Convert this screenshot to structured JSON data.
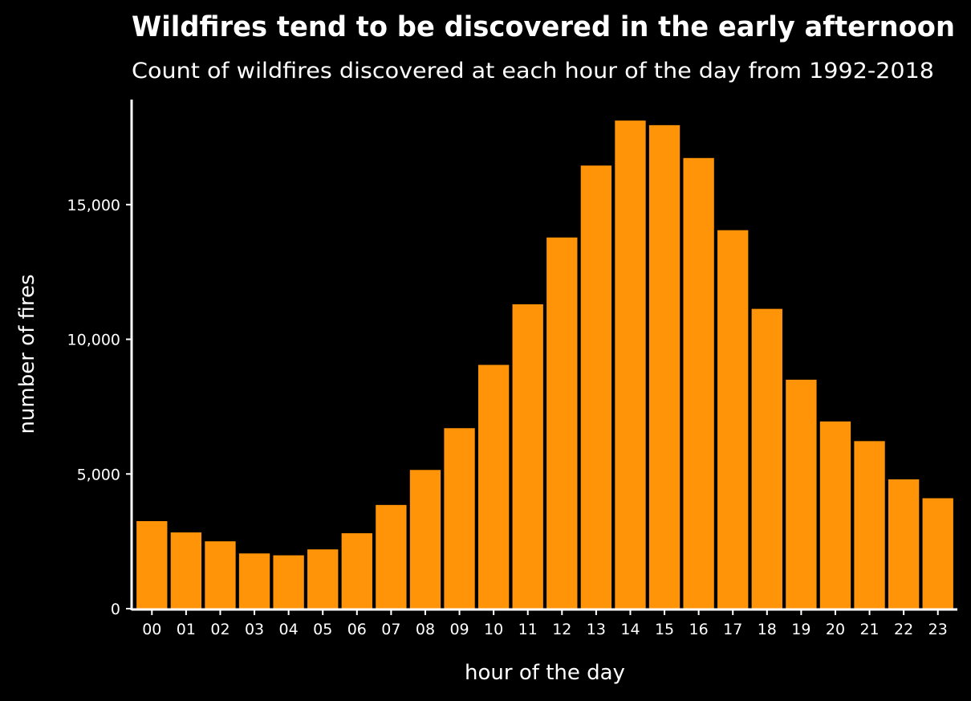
{
  "chart_data": {
    "type": "bar",
    "title": "Wildfires tend to be discovered in the early afternoon",
    "subtitle": "Count of wildfires discovered at each hour of the day from 1992-2018",
    "xlabel": "hour of the day",
    "ylabel": "number of fires",
    "categories": [
      "00",
      "01",
      "02",
      "03",
      "04",
      "05",
      "06",
      "07",
      "08",
      "09",
      "10",
      "11",
      "12",
      "13",
      "14",
      "15",
      "16",
      "17",
      "18",
      "19",
      "20",
      "21",
      "22",
      "23"
    ],
    "values": [
      3250,
      2830,
      2500,
      2050,
      1980,
      2200,
      2800,
      3850,
      5150,
      6700,
      9050,
      11300,
      13780,
      16450,
      18120,
      17950,
      16730,
      14050,
      11130,
      8500,
      6950,
      6220,
      4800,
      4100
    ],
    "ylim": [
      0,
      18900
    ],
    "yticks": [
      0,
      5000,
      10000,
      15000
    ],
    "ytick_labels": [
      "0",
      "5,000",
      "10,000",
      "15,000"
    ],
    "bar_color": "#ff9408",
    "background": "#000000",
    "grid": false
  }
}
